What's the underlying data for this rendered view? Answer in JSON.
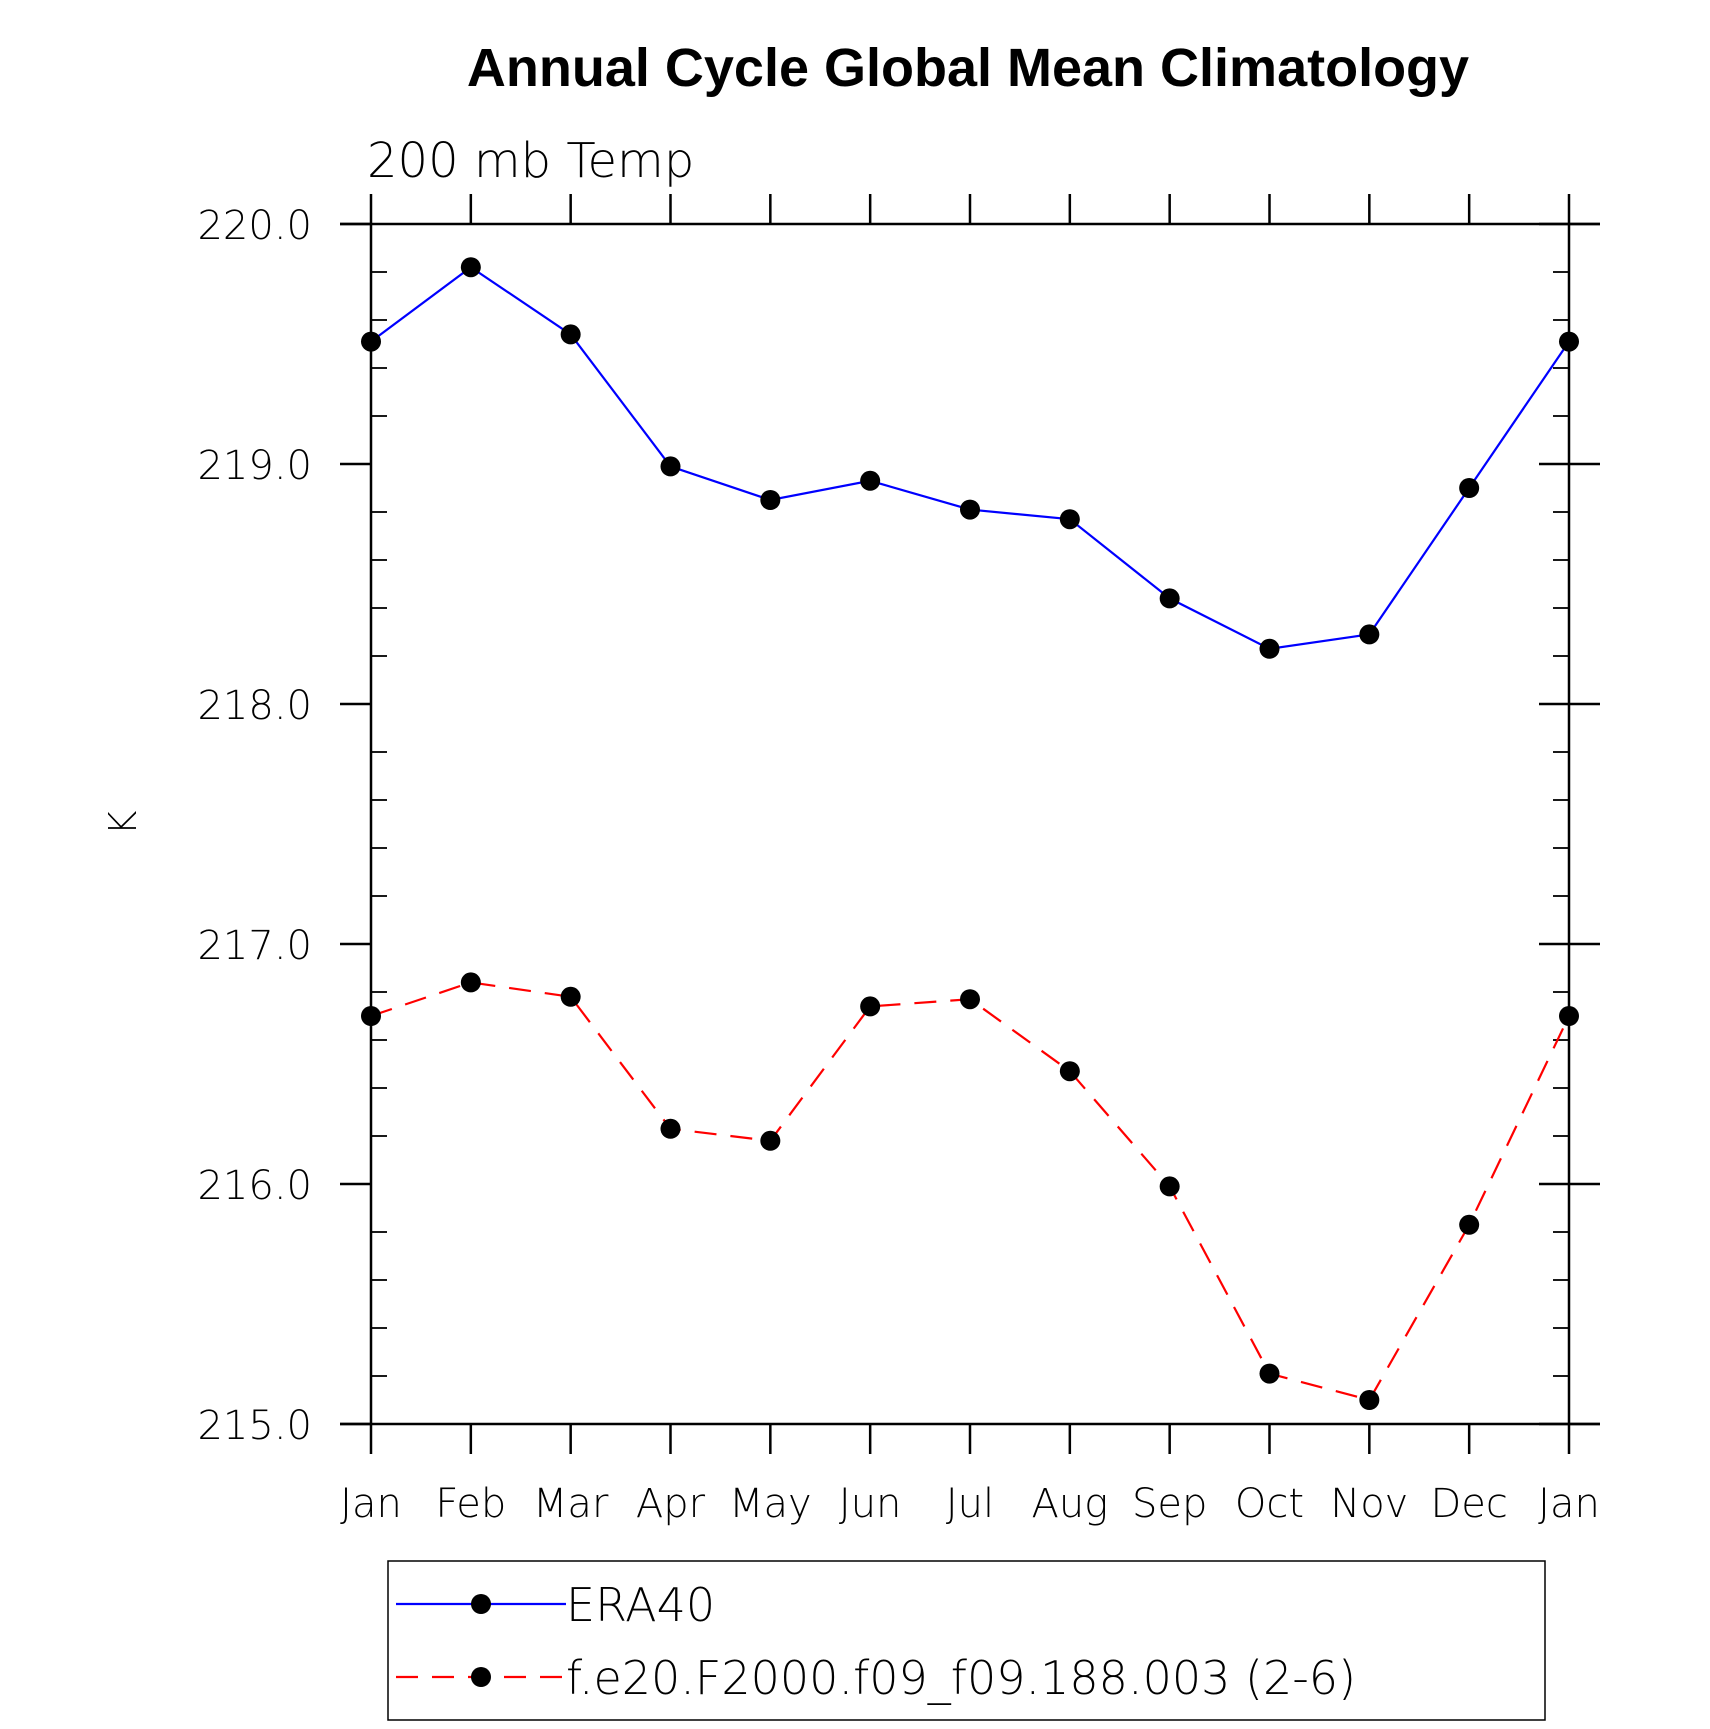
{
  "chart_data": {
    "type": "line",
    "title": "Annual Cycle Global Mean Climatology",
    "subtitle": "200 mb Temp",
    "xlabel": "",
    "ylabel": "K",
    "categories": [
      "Jan",
      "Feb",
      "Mar",
      "Apr",
      "May",
      "Jun",
      "Jul",
      "Aug",
      "Sep",
      "Oct",
      "Nov",
      "Dec",
      "Jan"
    ],
    "ylim": [
      215.0,
      220.0
    ],
    "yticks": [
      "215.0",
      "216.0",
      "217.0",
      "218.0",
      "219.0",
      "220.0"
    ],
    "grid": false,
    "legend_position": "bottom",
    "series": [
      {
        "name": "ERA40",
        "color": "#0000ff",
        "dash": "solid",
        "marker": "filled-circle",
        "values": [
          219.51,
          219.82,
          219.54,
          218.99,
          218.85,
          218.93,
          218.81,
          218.77,
          218.44,
          218.23,
          218.29,
          218.9,
          219.51
        ]
      },
      {
        "name": "f.e20.F2000.f09_f09.188.003 (2-6)",
        "color": "#ff0000",
        "dash": "dashed",
        "marker": "filled-circle",
        "values": [
          216.7,
          216.84,
          216.78,
          216.23,
          216.18,
          216.74,
          216.77,
          216.47,
          215.99,
          215.21,
          215.1,
          215.83,
          216.7
        ]
      }
    ]
  }
}
